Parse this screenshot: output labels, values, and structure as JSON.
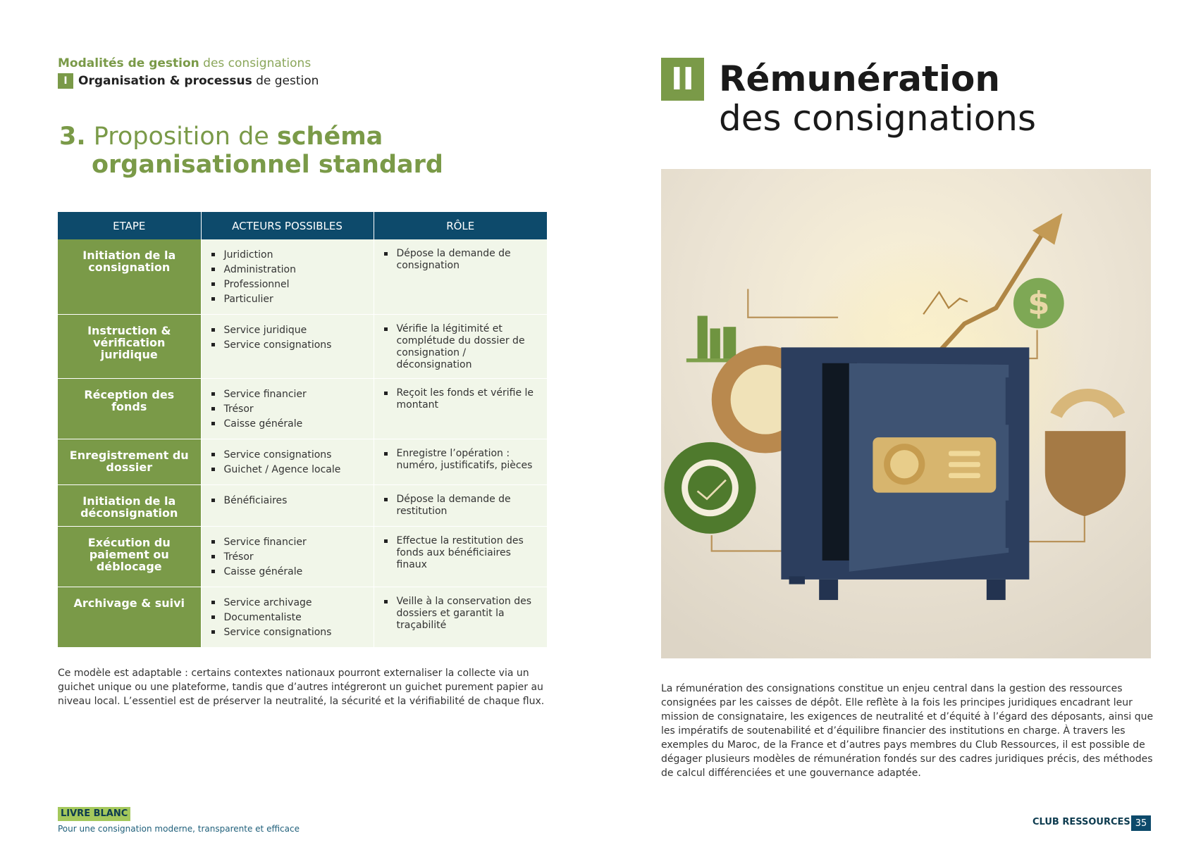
{
  "header": {
    "section_bold": "Modalités de gestion",
    "section_rest": " des consignations",
    "chapter_num": "I",
    "chapter_bold": "Organisation & processus",
    "chapter_rest": " de gestion"
  },
  "title": {
    "number": "3.",
    "light": " Proposition de ",
    "bold1": "schéma",
    "line2": "organisationnel standard"
  },
  "table": {
    "headers": [
      "ETAPE",
      "ACTEURS POSSIBLES",
      "RÔLE"
    ],
    "rows": [
      {
        "step": "Initiation de la consignation",
        "actors": [
          "Juridiction",
          "Administration",
          "Professionnel",
          "Particulier"
        ],
        "roles": [
          "Dépose la demande de consignation"
        ]
      },
      {
        "step": "Instruction & vérification juridique",
        "actors": [
          "Service juridique",
          "Service consignations"
        ],
        "roles": [
          "Vérifie la légitimité et complétude du dossier de consignation / déconsignation"
        ]
      },
      {
        "step": "Réception des fonds",
        "actors": [
          "Service financier",
          "Trésor",
          "Caisse générale"
        ],
        "roles": [
          "Reçoit les fonds et vérifie le montant"
        ]
      },
      {
        "step": "Enregistrement du dossier",
        "actors": [
          "Service consignations",
          "Guichet / Agence locale"
        ],
        "roles": [
          "Enregistre l’opération : numéro, justificatifs, pièces"
        ]
      },
      {
        "step": "Initiation de la déconsignation",
        "actors": [
          "Bénéficiaires"
        ],
        "roles": [
          "Dépose la demande de restitution"
        ]
      },
      {
        "step": "Exécution du paiement ou déblocage",
        "actors": [
          "Service financier",
          "Trésor",
          "Caisse générale"
        ],
        "roles": [
          "Effectue la restitution des fonds aux bénéficiaires finaux"
        ]
      },
      {
        "step": "Archivage & suivi",
        "actors": [
          "Service archivage",
          "Documentaliste",
          "Service consignations"
        ],
        "roles": [
          "Veille à la conservation des dossiers et garantit la traçabilité"
        ]
      }
    ]
  },
  "left_paragraph": "Ce modèle est adaptable : certains contextes nationaux pourront externaliser la collecte via un guichet unique ou une plateforme, tandis que d’autres intégreront un guichet purement papier au niveau local. L’essentiel est de préserver la neutralité, la sécurité et la vérifiabilité de chaque flux.",
  "footer_left": {
    "badge": "LIVRE BLANC",
    "tagline": "Pour une consignation moderne, transparente et efficace"
  },
  "right": {
    "section_num": "II",
    "title_bold": "Rémunération",
    "title_light": "des consignations",
    "paragraph": "La rémunération des consignations constitue un enjeu central dans la gestion des ressources consignées par les caisses de dépôt. Elle reflète à la fois les principes juridiques encadrant leur mission de consignataire, les exigences de neutralité et d’équité à l’égard des déposants, ainsi que les impératifs de soutenabilité et d’équilibre financier des institutions en charge. À travers les exemples du Maroc, de la France et d’autres pays membres du Club Ressources, il est possible de dégager plusieurs modèles de rémunération fondés sur des cadres juridiques précis, des méthodes de calcul différenciées et une gouvernance adaptée.",
    "illustration_dollar": "$"
  },
  "footer_right": {
    "brand": "CLUB RESSOURCES",
    "page": "35"
  },
  "colors": {
    "green": "#7a9a48",
    "navy": "#0d4a6b",
    "light_green_bg": "#f1f6e9",
    "badge_green": "#a4c85c"
  }
}
